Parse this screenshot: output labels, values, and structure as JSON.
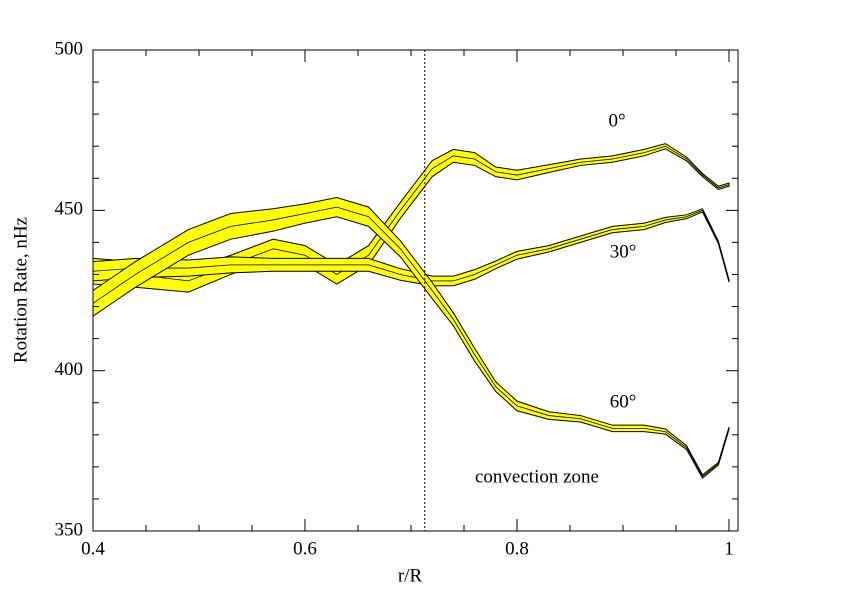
{
  "chart_data": {
    "type": "line",
    "x_label": "r/R",
    "y_label": "Rotation Rate, nHz",
    "annotation": "convection zone",
    "vline": 0.713,
    "xlim": [
      0.4,
      1.0085
    ],
    "ylim": [
      350,
      500
    ],
    "xticks": [
      0.4,
      0.6,
      0.8,
      {
        "value": 1.0,
        "label": "1"
      }
    ],
    "yticks": [
      350,
      400,
      450,
      500
    ],
    "xminorticks": [
      0.45,
      0.5,
      0.55,
      0.65,
      0.7,
      0.75,
      0.85,
      0.9,
      0.95
    ],
    "yminorticks": [
      360,
      370,
      380,
      390,
      410,
      420,
      430,
      440,
      460,
      470,
      480,
      490
    ],
    "band_color": "#ffff00",
    "line_color": "#000000",
    "x": [
      0.4,
      0.44,
      0.49,
      0.53,
      0.57,
      0.6,
      0.63,
      0.66,
      0.69,
      0.72,
      0.74,
      0.76,
      0.78,
      0.8,
      0.83,
      0.86,
      0.89,
      0.92,
      0.94,
      0.96,
      0.975,
      0.99,
      1.0
    ],
    "series": [
      {
        "name": "0°",
        "values": [
          431,
          430,
          428,
          433,
          438,
          436,
          430,
          436,
          450,
          463,
          467,
          466,
          462,
          461,
          463,
          465,
          466,
          468,
          470,
          466,
          461,
          457,
          458
        ],
        "errors": [
          4,
          4,
          3.5,
          3,
          3,
          3,
          3,
          3,
          2.5,
          2.5,
          2,
          2,
          1.5,
          1.5,
          1.2,
          1,
          1,
          1,
          0.8,
          0.6,
          0.5,
          0.5,
          0.5
        ]
      },
      {
        "name": "30°",
        "values": [
          431,
          432,
          432,
          433,
          433,
          433,
          433,
          433,
          430,
          428,
          428,
          430,
          433,
          436,
          438,
          441,
          444,
          445,
          447,
          448,
          450,
          440,
          428
        ],
        "errors": [
          3,
          3,
          2.5,
          2.5,
          2,
          2,
          2,
          2,
          1.8,
          1.5,
          1.5,
          1.5,
          1.2,
          1.2,
          1,
          1,
          1,
          1,
          0.8,
          0.6,
          0.5,
          0.4,
          0.4
        ]
      },
      {
        "name": "60°",
        "values": [
          421,
          430,
          440,
          445,
          447,
          449,
          451,
          448,
          438,
          425,
          416,
          405,
          395,
          389,
          386,
          385,
          382,
          382,
          381,
          376,
          367,
          371,
          382
        ],
        "errors": [
          4,
          4,
          4,
          4,
          3.5,
          3,
          3,
          3,
          2.5,
          2.5,
          2,
          2,
          1.5,
          1.5,
          1.2,
          1,
          1,
          1,
          0.8,
          0.6,
          0.5,
          0.4,
          0.4
        ]
      }
    ]
  }
}
